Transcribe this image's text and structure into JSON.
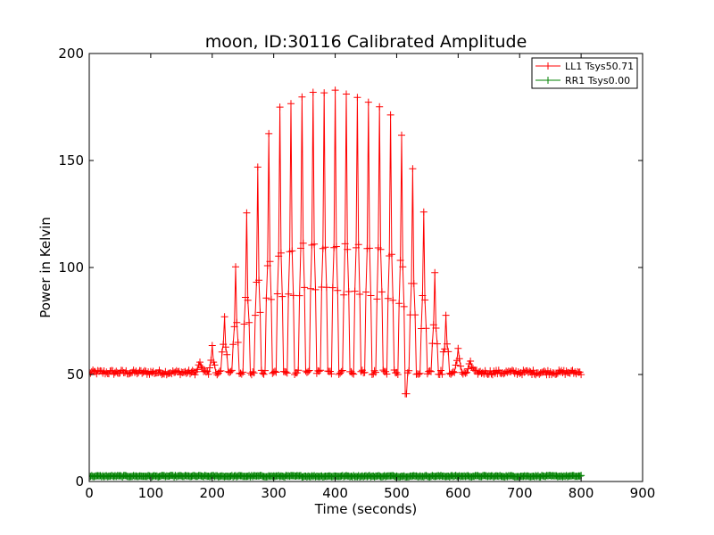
{
  "chart_data": {
    "type": "line",
    "title": "moon, ID:30116 Calibrated Amplitude",
    "xlabel": "Time (seconds)",
    "ylabel": "Power in Kelvin",
    "xlim": [
      0,
      900
    ],
    "ylim": [
      0,
      200
    ],
    "xticks": [
      "0",
      "100",
      "200",
      "300",
      "400",
      "500",
      "600",
      "700",
      "800",
      "900"
    ],
    "yticks": [
      "0",
      "50",
      "100",
      "150",
      "200"
    ],
    "grid": false,
    "legend_position": "top-right",
    "sample_interval_s": 2,
    "series": [
      {
        "name": "LL1 Tsys50.71",
        "color": "#ff0000",
        "marker": "+",
        "baseline": 51,
        "end_time": 800,
        "peak_times": [
          180,
          200,
          220,
          238,
          256,
          274,
          292,
          310,
          328,
          346,
          364,
          382,
          400,
          418,
          436,
          454,
          472,
          490,
          508,
          526,
          544,
          562,
          580,
          600,
          620
        ],
        "peak_values": [
          57,
          64,
          77,
          101,
          126,
          148,
          164,
          175,
          178,
          181,
          182,
          183,
          183,
          182,
          181,
          178,
          176,
          172,
          163,
          147,
          127,
          98,
          78,
          63,
          57
        ],
        "dip": {
          "time": 515,
          "value": 41
        }
      },
      {
        "name": "RR1 Tsys0.00",
        "color": "#008000",
        "marker": "+",
        "baseline": 2.5,
        "end_time": 800
      }
    ]
  }
}
